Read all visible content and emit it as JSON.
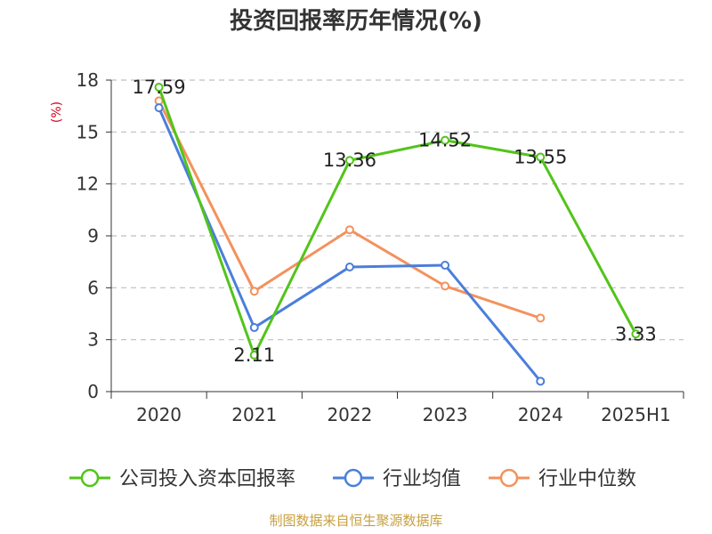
{
  "chart_data": {
    "type": "line",
    "title": "投资回报率历年情况(%)",
    "ylabel": "(%)",
    "xlabel": "",
    "categories": [
      "2020",
      "2021",
      "2022",
      "2023",
      "2024",
      "2025H1"
    ],
    "ylim": [
      0,
      18
    ],
    "yticks": [
      0,
      3,
      6,
      9,
      12,
      15,
      18
    ],
    "grid": true,
    "legend_position": "bottom",
    "series": [
      {
        "name": "公司投入资本回报率",
        "color": "#52c41a",
        "values": [
          17.59,
          2.11,
          13.36,
          14.52,
          13.55,
          3.33
        ],
        "labels": [
          "17.59",
          "2.11",
          "13.36",
          "14.52",
          "13.55",
          "3.33"
        ]
      },
      {
        "name": "行业均值",
        "color": "#4a7fdb",
        "values": [
          16.4,
          3.7,
          7.2,
          7.3,
          0.6,
          null
        ]
      },
      {
        "name": "行业中位数",
        "color": "#f4915c",
        "values": [
          16.8,
          5.8,
          9.35,
          6.1,
          4.25,
          null
        ]
      }
    ]
  },
  "source_note": "制图数据来自恒生聚源数据库"
}
